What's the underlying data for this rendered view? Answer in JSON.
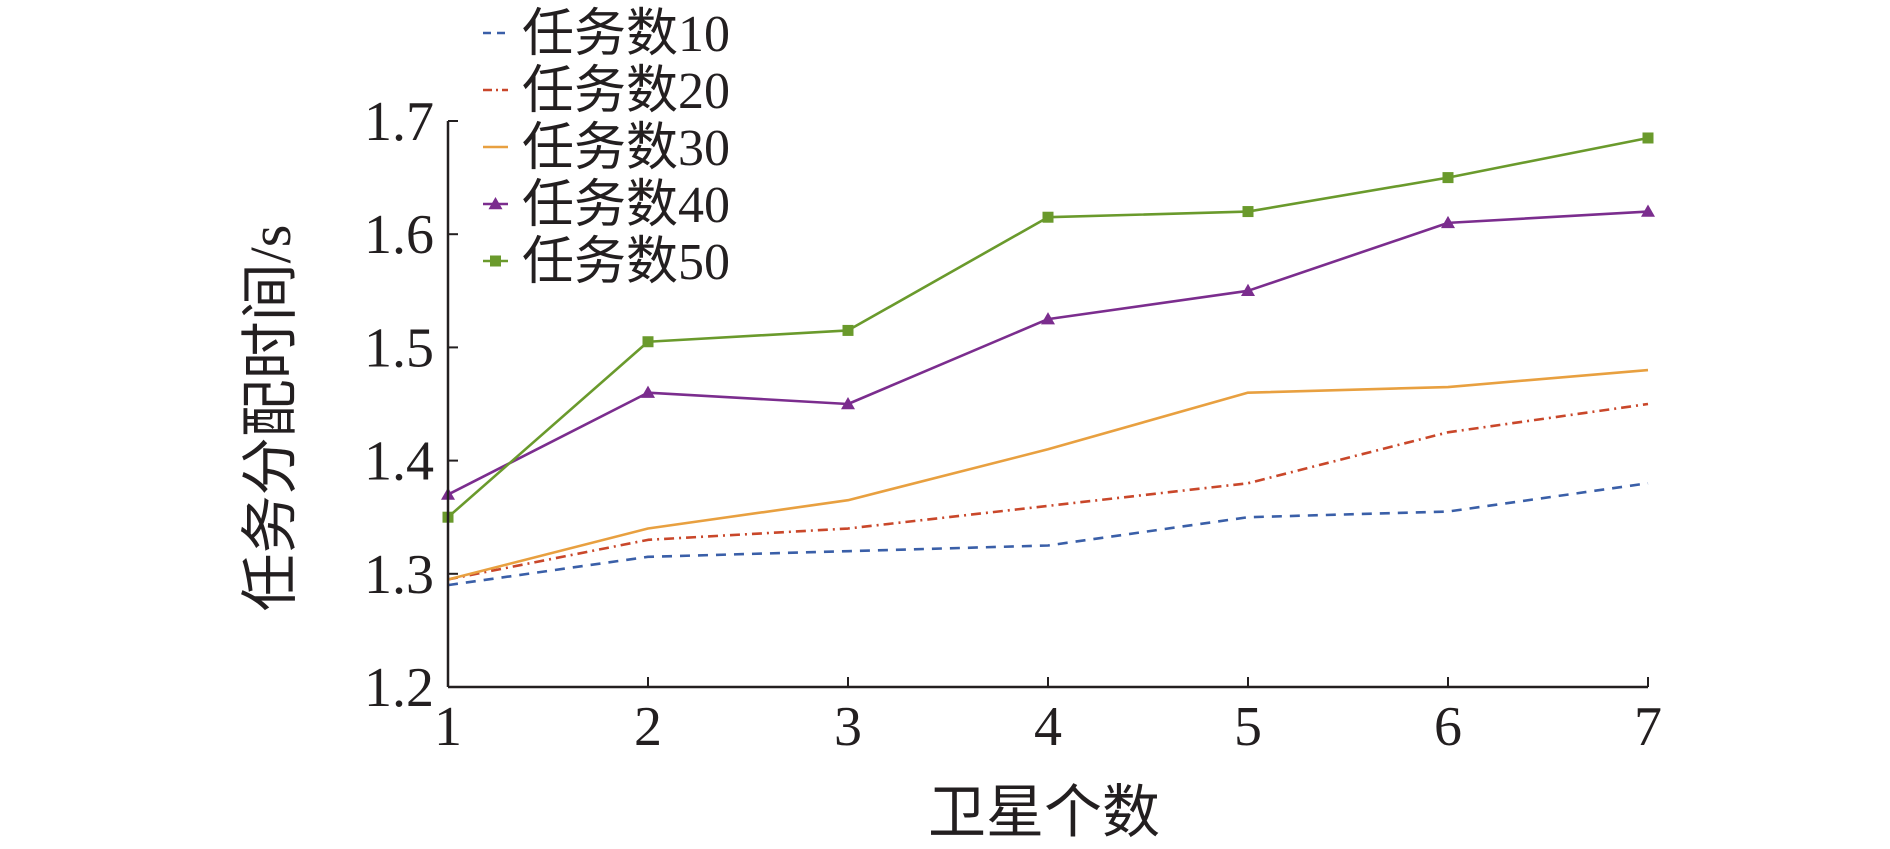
{
  "chart_data": {
    "type": "line",
    "title": "",
    "xlabel": "卫星个数",
    "ylabel": "任务分配时间/s",
    "x": [
      1,
      2,
      3,
      4,
      5,
      6,
      7
    ],
    "xlim": [
      1,
      7
    ],
    "ylim": [
      1.2,
      1.7
    ],
    "xticks": [
      "1",
      "2",
      "3",
      "4",
      "5",
      "6",
      "7"
    ],
    "yticks": [
      "1.2",
      "1.3",
      "1.4",
      "1.5",
      "1.6",
      "1.7"
    ],
    "grid": false,
    "legend_position": "top-left",
    "series": [
      {
        "name": "任务数10",
        "color": "#3a5fa8",
        "dash": "dashed",
        "marker": "none",
        "values": [
          1.29,
          1.315,
          1.32,
          1.325,
          1.35,
          1.355,
          1.38
        ]
      },
      {
        "name": "任务数20",
        "color": "#c9472a",
        "dash": "dashdot",
        "marker": "none",
        "values": [
          1.295,
          1.33,
          1.34,
          1.36,
          1.38,
          1.425,
          1.45
        ]
      },
      {
        "name": "任务数30",
        "color": "#e8a040",
        "dash": "solid",
        "marker": "none",
        "values": [
          1.295,
          1.34,
          1.365,
          1.41,
          1.46,
          1.465,
          1.48
        ]
      },
      {
        "name": "任务数40",
        "color": "#7b2d8e",
        "dash": "solid",
        "marker": "triangle",
        "values": [
          1.37,
          1.46,
          1.45,
          1.525,
          1.55,
          1.61,
          1.62
        ]
      },
      {
        "name": "任务数50",
        "color": "#6a9a2c",
        "dash": "solid",
        "marker": "square",
        "values": [
          1.35,
          1.505,
          1.515,
          1.615,
          1.62,
          1.65,
          1.685
        ]
      }
    ]
  }
}
